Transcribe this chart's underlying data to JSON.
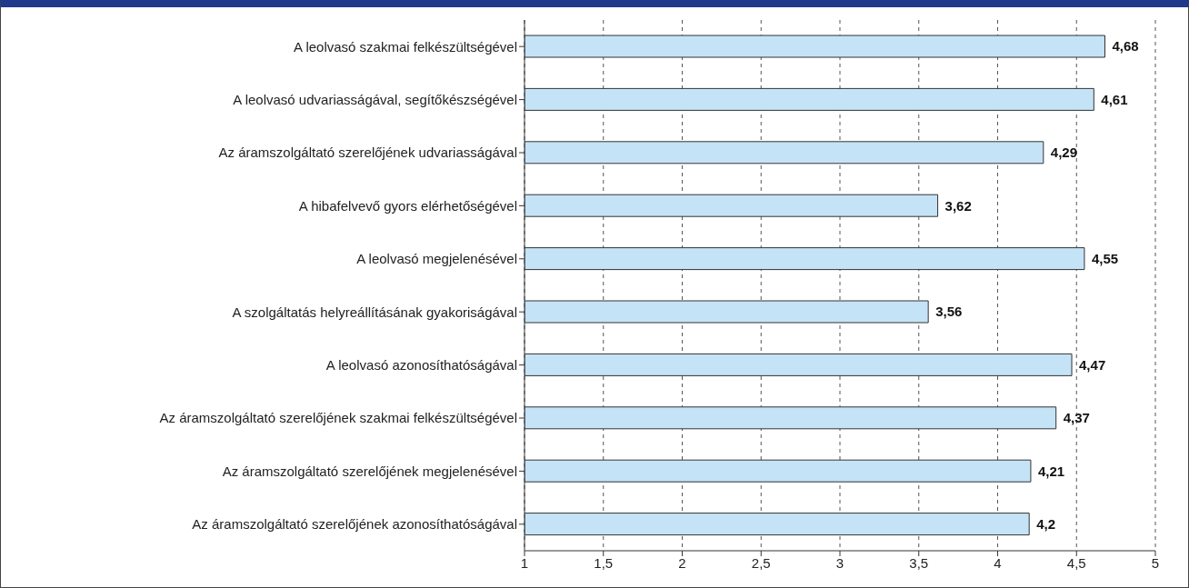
{
  "chart_data": {
    "type": "bar",
    "orientation": "horizontal",
    "categories": [
      "A leolvasó szakmai felkészültségével",
      "A leolvasó udvariasságával, segítőkészségével",
      "Az áramszolgáltató szerelőjének udvariasságával",
      "A hibafelvevő gyors elérhetőségével",
      "A leolvasó megjelenésével",
      "A szolgáltatás helyreállításának gyakoriságával",
      "A leolvasó azonosíthatóságával",
      "Az áramszolgáltató szerelőjének szakmai felkészültségével",
      "Az áramszolgáltató szerelőjének megjelenésével",
      "Az áramszolgáltató szerelőjének azonosíthatóságával"
    ],
    "values": [
      4.68,
      4.61,
      4.29,
      3.62,
      4.55,
      3.56,
      4.47,
      4.37,
      4.21,
      4.2
    ],
    "value_labels": [
      "4,68",
      "4,61",
      "4,29",
      "3,62",
      "4,55",
      "3,56",
      "4,47",
      "4,37",
      "4,21",
      "4,2"
    ],
    "color": "#c5e3f6",
    "xlim": [
      1,
      5
    ],
    "xticks": [
      1,
      {
        "value": 1.5,
        "label": "1,5"
      },
      2,
      {
        "value": 2.5,
        "label": "2,5"
      },
      3,
      {
        "value": 3.5,
        "label": "3,5"
      },
      4,
      {
        "value": 4.5,
        "label": "4,5"
      },
      5
    ],
    "grid": "x"
  }
}
